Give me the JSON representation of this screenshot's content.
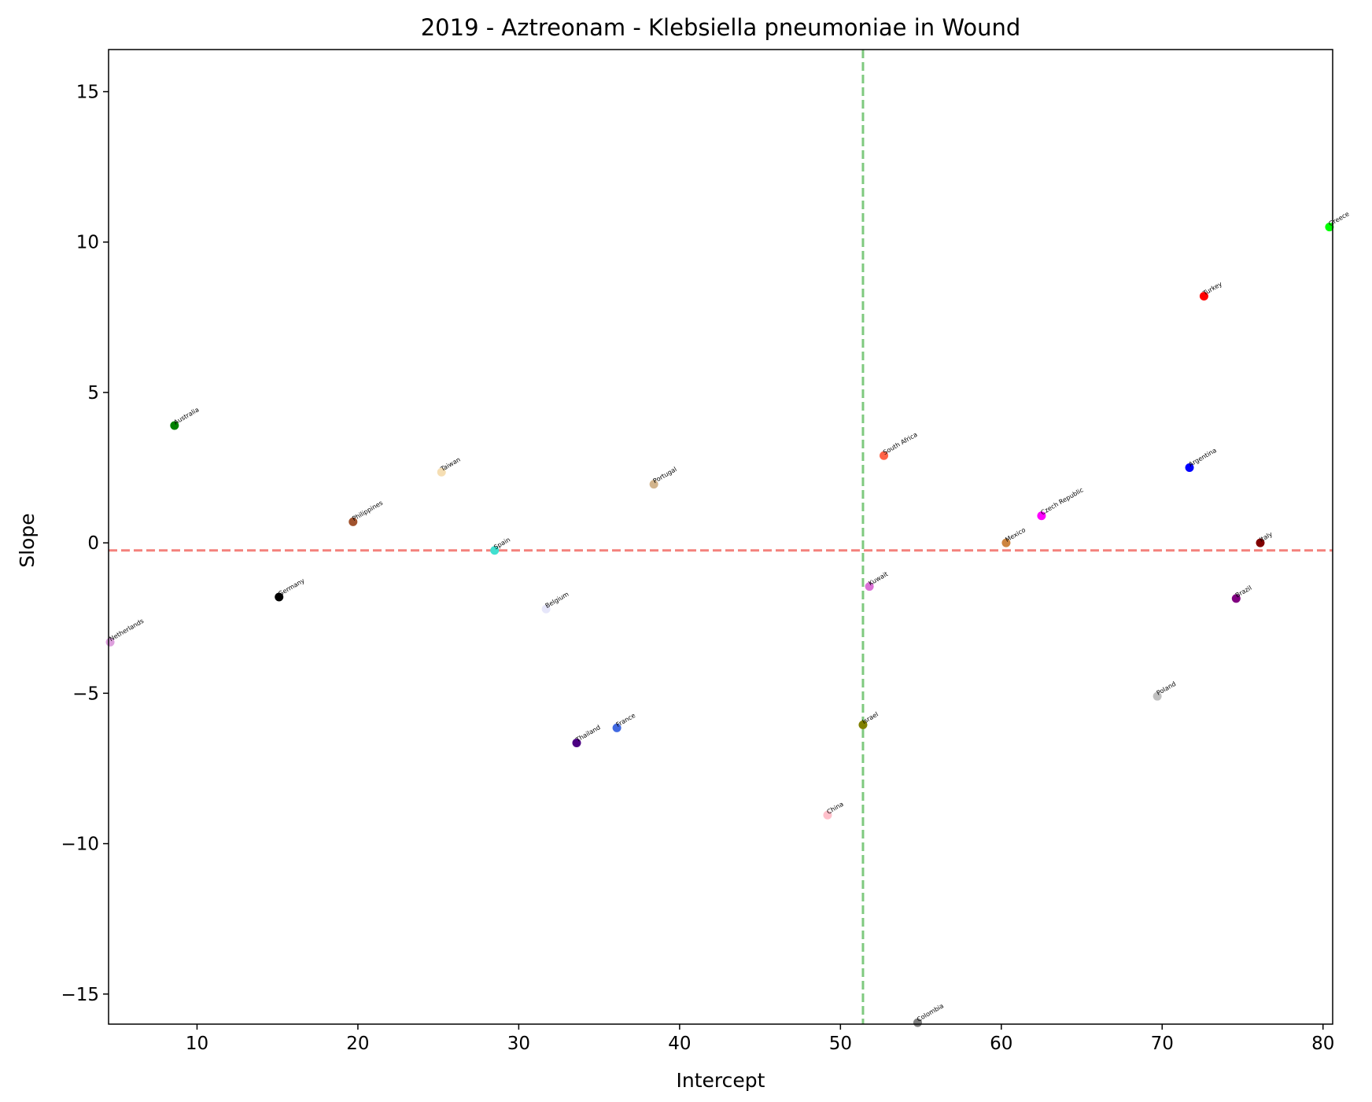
{
  "chart_data": {
    "type": "scatter",
    "title": "2019 - Aztreonam - Klebsiella pneumoniae in Wound",
    "xlabel": "Intercept",
    "ylabel": "Slope",
    "xlim": [
      4.5,
      80.6
    ],
    "ylim": [
      -16.0,
      16.4
    ],
    "xticks": [
      10,
      20,
      30,
      40,
      50,
      60,
      70,
      80
    ],
    "yticks": [
      -15,
      -10,
      -5,
      0,
      5,
      10,
      15
    ],
    "xtick_labels": [
      "10",
      "20",
      "30",
      "40",
      "50",
      "60",
      "70",
      "80"
    ],
    "ytick_labels": [
      "−15",
      "−10",
      "−5",
      "0",
      "5",
      "10",
      "15"
    ],
    "grid": false,
    "reference_lines": {
      "vertical_x": 51.4,
      "vertical_color": "#7fc97f",
      "horizontal_y": -0.25,
      "horizontal_color": "#f4817c"
    },
    "points": [
      {
        "label": "Greece",
        "x": 80.4,
        "y": 10.5,
        "color": "#00ff00"
      },
      {
        "label": "Turkey",
        "x": 72.6,
        "y": 8.2,
        "color": "#ff0000"
      },
      {
        "label": "Australia",
        "x": 8.6,
        "y": 3.9,
        "color": "#008000"
      },
      {
        "label": "South Africa",
        "x": 52.7,
        "y": 2.9,
        "color": "#ff6347"
      },
      {
        "label": "Argentina",
        "x": 71.7,
        "y": 2.5,
        "color": "#0000ff"
      },
      {
        "label": "Taiwan",
        "x": 25.2,
        "y": 2.35,
        "color": "#f5deb3"
      },
      {
        "label": "Portugal",
        "x": 38.4,
        "y": 1.95,
        "color": "#d2b48c"
      },
      {
        "label": "Czech Republic",
        "x": 62.5,
        "y": 0.9,
        "color": "#ff00ff"
      },
      {
        "label": "Philippines",
        "x": 19.7,
        "y": 0.7,
        "color": "#a0522d"
      },
      {
        "label": "Mexico",
        "x": 60.3,
        "y": 0.0,
        "color": "#cd853f"
      },
      {
        "label": "Italy",
        "x": 76.1,
        "y": 0.0,
        "color": "#800000"
      },
      {
        "label": "Spain",
        "x": 28.5,
        "y": -0.25,
        "color": "#40e0d0"
      },
      {
        "label": "Kuwait",
        "x": 51.8,
        "y": -1.45,
        "color": "#da70d6"
      },
      {
        "label": "Germany",
        "x": 15.1,
        "y": -1.8,
        "color": "#000000"
      },
      {
        "label": "Brazil",
        "x": 74.6,
        "y": -1.85,
        "color": "#800080"
      },
      {
        "label": "Belgium",
        "x": 31.7,
        "y": -2.2,
        "color": "#e6e6fa"
      },
      {
        "label": "Netherlands",
        "x": 4.6,
        "y": -3.3,
        "color": "#dda0dd"
      },
      {
        "label": "Poland",
        "x": 69.7,
        "y": -5.1,
        "color": "#c0c0c0"
      },
      {
        "label": "France",
        "x": 36.1,
        "y": -6.15,
        "color": "#4169e1"
      },
      {
        "label": "Israel",
        "x": 51.4,
        "y": -6.05,
        "color": "#808000"
      },
      {
        "label": "Thailand",
        "x": 33.6,
        "y": -6.65,
        "color": "#4b0082"
      },
      {
        "label": "China",
        "x": 49.2,
        "y": -9.05,
        "color": "#ffc0cb"
      },
      {
        "label": "Colombia",
        "x": 54.8,
        "y": -15.95,
        "color": "#808080"
      }
    ]
  }
}
